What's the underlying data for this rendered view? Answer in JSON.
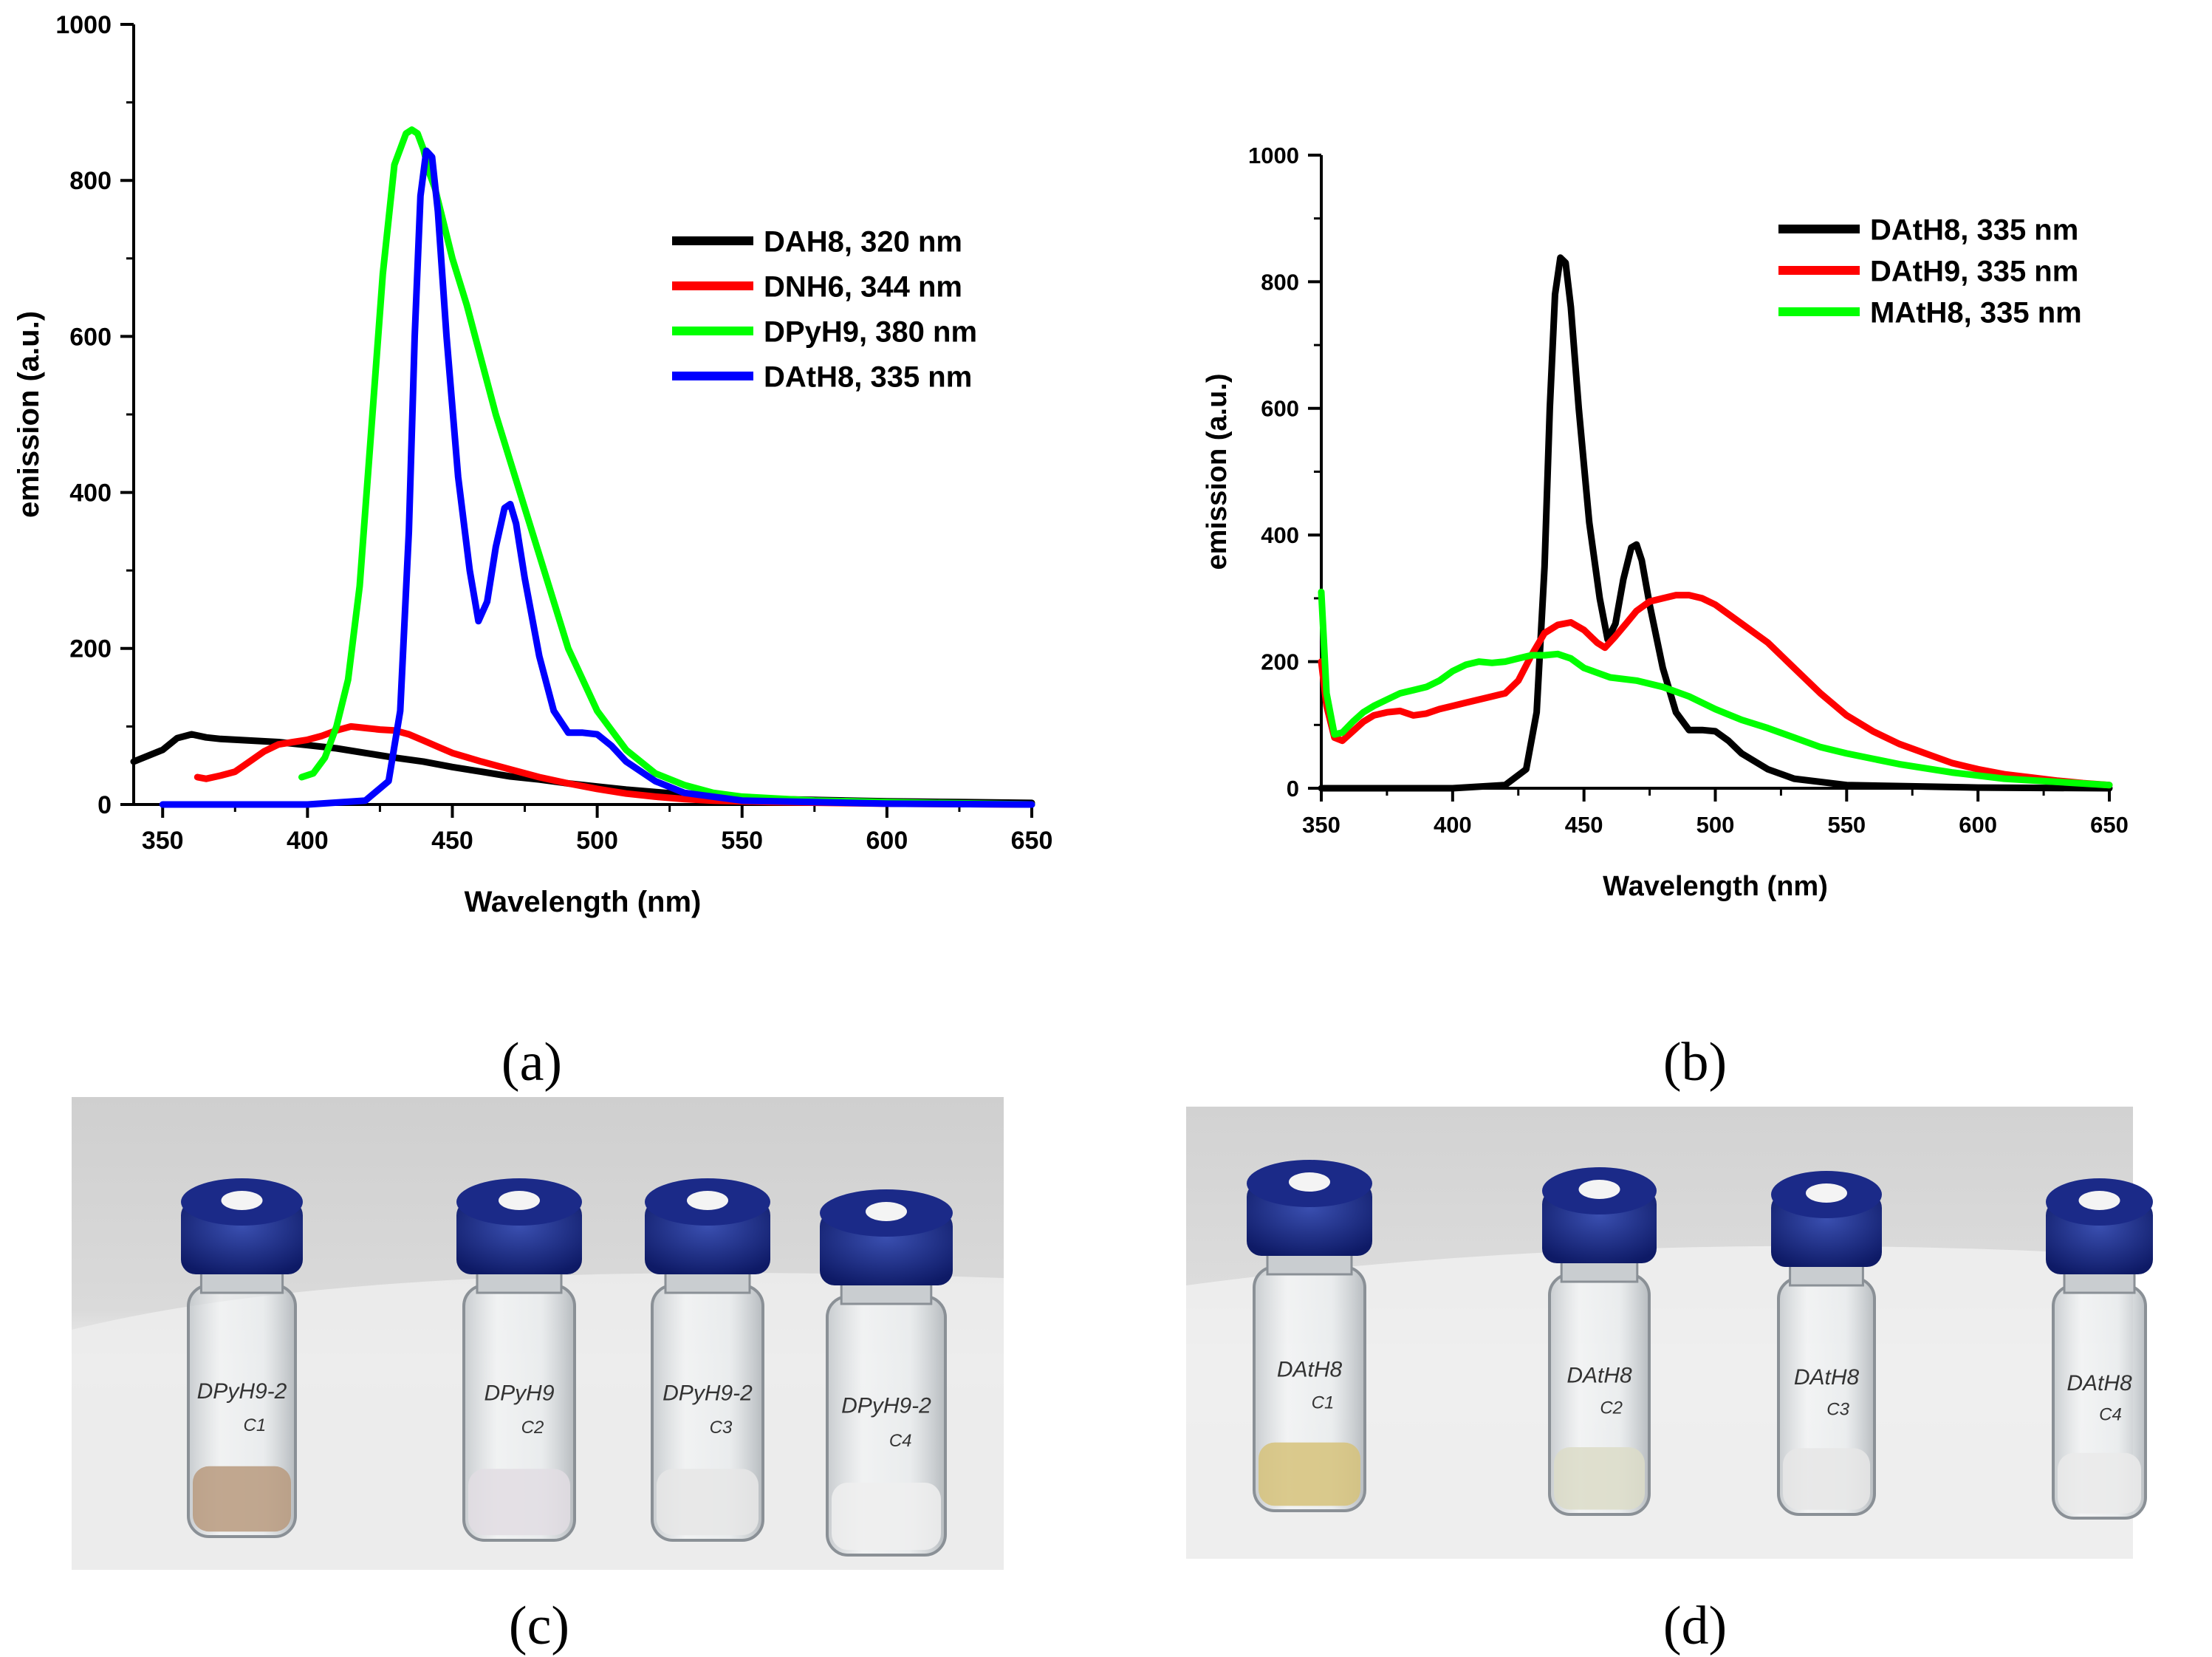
{
  "panel_labels": {
    "a": "(a)",
    "b": "(b)",
    "c": "(c)",
    "d": "(d)"
  },
  "chart_data": [
    {
      "type": "line",
      "panel": "a",
      "xlabel": "Wavelength (nm)",
      "ylabel": "emission (a.u.)",
      "xlim": [
        340,
        650
      ],
      "ylim": [
        0,
        1000
      ],
      "xticks": [
        350,
        400,
        450,
        500,
        550,
        600,
        650
      ],
      "yticks": [
        0,
        200,
        400,
        600,
        800,
        1000
      ],
      "legend_position": "top-right",
      "series": [
        {
          "name": "DAH8, 320 nm",
          "color": "#000000",
          "x": [
            340,
            350,
            355,
            360,
            365,
            370,
            380,
            390,
            400,
            410,
            420,
            430,
            440,
            450,
            460,
            470,
            480,
            490,
            500,
            510,
            520,
            530,
            540,
            560,
            600,
            625,
            650
          ],
          "y": [
            55,
            70,
            85,
            90,
            86,
            84,
            82,
            80,
            76,
            72,
            66,
            60,
            55,
            48,
            42,
            36,
            32,
            27,
            23,
            19,
            16,
            13,
            10,
            7,
            4,
            3,
            2
          ]
        },
        {
          "name": "DNH6, 344 nm",
          "color": "#ff0000",
          "x": [
            362,
            365,
            370,
            375,
            380,
            385,
            390,
            395,
            400,
            405,
            410,
            415,
            420,
            425,
            430,
            435,
            440,
            445,
            450,
            460,
            470,
            480,
            490,
            500,
            510,
            520,
            530,
            540,
            560,
            600,
            650
          ],
          "y": [
            35,
            33,
            37,
            42,
            55,
            68,
            77,
            80,
            83,
            88,
            95,
            100,
            98,
            96,
            95,
            90,
            82,
            74,
            66,
            55,
            45,
            35,
            27,
            20,
            14,
            10,
            7,
            5,
            3,
            1,
            0
          ]
        },
        {
          "name": "DPyH9, 380 nm",
          "color": "#00ff00",
          "x": [
            398,
            402,
            406,
            410,
            414,
            418,
            422,
            426,
            430,
            434,
            436,
            438,
            440,
            442,
            444,
            446,
            450,
            455,
            460,
            465,
            470,
            475,
            480,
            485,
            490,
            500,
            510,
            520,
            530,
            540,
            550,
            575,
            600,
            650
          ],
          "y": [
            35,
            40,
            60,
            100,
            160,
            280,
            480,
            680,
            820,
            860,
            865,
            860,
            840,
            810,
            790,
            760,
            700,
            640,
            570,
            500,
            440,
            380,
            320,
            260,
            200,
            120,
            70,
            40,
            25,
            15,
            10,
            5,
            3,
            0
          ]
        },
        {
          "name": "DAtH8, 335 nm",
          "color": "#0000ff",
          "x": [
            350,
            400,
            420,
            428,
            432,
            435,
            437,
            439,
            441,
            443,
            445,
            448,
            452,
            456,
            459,
            462,
            465,
            468,
            470,
            472,
            475,
            480,
            485,
            490,
            495,
            500,
            505,
            510,
            520,
            530,
            550,
            600,
            650
          ],
          "y": [
            0,
            0,
            5,
            30,
            120,
            350,
            600,
            780,
            838,
            830,
            760,
            600,
            420,
            300,
            235,
            260,
            330,
            380,
            385,
            360,
            290,
            190,
            120,
            92,
            92,
            90,
            75,
            55,
            30,
            15,
            5,
            1,
            0
          ]
        }
      ]
    },
    {
      "type": "line",
      "panel": "b",
      "xlabel": "Wavelength (nm)",
      "ylabel": "emission (a.u.)",
      "xlim": [
        350,
        650
      ],
      "ylim": [
        0,
        1000
      ],
      "xticks": [
        350,
        400,
        450,
        500,
        550,
        600,
        650
      ],
      "yticks": [
        0,
        200,
        400,
        600,
        800,
        1000
      ],
      "legend_position": "top-right",
      "series": [
        {
          "name": "DAtH8, 335 nm",
          "color": "#000000",
          "x": [
            350,
            400,
            420,
            428,
            432,
            435,
            437,
            439,
            441,
            443,
            445,
            448,
            452,
            456,
            459,
            462,
            465,
            468,
            470,
            472,
            475,
            480,
            485,
            490,
            495,
            500,
            505,
            510,
            520,
            530,
            550,
            600,
            650
          ],
          "y": [
            0,
            0,
            5,
            30,
            120,
            350,
            600,
            780,
            838,
            830,
            760,
            600,
            420,
            300,
            235,
            260,
            330,
            380,
            385,
            360,
            290,
            190,
            120,
            92,
            92,
            90,
            75,
            55,
            30,
            15,
            5,
            1,
            0
          ]
        },
        {
          "name": "DAtH9, 335 nm",
          "color": "#ff0000",
          "x": [
            350,
            352,
            355,
            358,
            362,
            366,
            370,
            375,
            380,
            385,
            390,
            395,
            400,
            405,
            410,
            415,
            420,
            425,
            430,
            435,
            440,
            445,
            450,
            455,
            458,
            462,
            466,
            470,
            475,
            480,
            485,
            490,
            495,
            500,
            505,
            510,
            520,
            530,
            540,
            550,
            560,
            570,
            580,
            590,
            600,
            610,
            620,
            630,
            640,
            650
          ],
          "y": [
            200,
            130,
            80,
            75,
            90,
            105,
            115,
            120,
            122,
            115,
            118,
            125,
            130,
            135,
            140,
            145,
            150,
            170,
            210,
            245,
            258,
            262,
            250,
            230,
            222,
            240,
            260,
            280,
            295,
            300,
            305,
            305,
            300,
            290,
            275,
            260,
            230,
            190,
            150,
            115,
            90,
            70,
            55,
            40,
            30,
            22,
            17,
            12,
            8,
            5
          ]
        },
        {
          "name": "MAtH8, 335 nm",
          "color": "#00ff00",
          "x": [
            350,
            352,
            355,
            358,
            362,
            366,
            370,
            375,
            380,
            385,
            390,
            395,
            400,
            405,
            410,
            415,
            420,
            425,
            430,
            435,
            440,
            445,
            450,
            460,
            470,
            480,
            490,
            500,
            510,
            520,
            530,
            540,
            550,
            570,
            590,
            610,
            630,
            650
          ],
          "y": [
            310,
            150,
            85,
            88,
            105,
            120,
            130,
            140,
            150,
            155,
            160,
            170,
            185,
            195,
            200,
            198,
            200,
            205,
            210,
            210,
            212,
            205,
            190,
            175,
            170,
            160,
            145,
            125,
            108,
            95,
            80,
            65,
            55,
            38,
            25,
            15,
            10,
            5
          ]
        }
      ]
    }
  ],
  "photos": {
    "c": {
      "vials": [
        {
          "label": "DPyH9-2",
          "sub": "C1"
        },
        {
          "label": "DPyH9",
          "sub": "C2"
        },
        {
          "label": "DPyH9-2",
          "sub": "C3"
        },
        {
          "label": "DPyH9-2",
          "sub": "C4"
        }
      ]
    },
    "d": {
      "vials": [
        {
          "label": "DAtH8",
          "sub": "C1"
        },
        {
          "label": "DAtH8",
          "sub": "C2"
        },
        {
          "label": "DAtH8",
          "sub": "C3"
        },
        {
          "label": "DAtH8",
          "sub": "C4"
        }
      ]
    }
  }
}
